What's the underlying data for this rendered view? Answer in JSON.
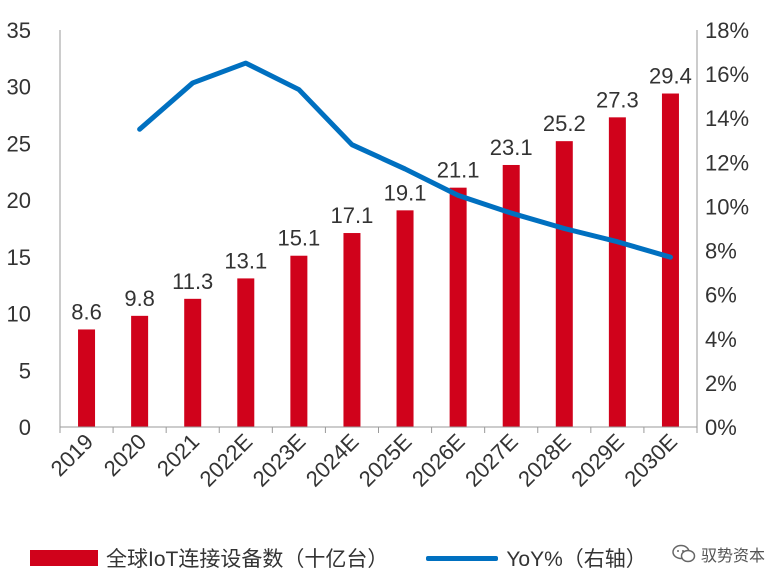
{
  "chart_data": {
    "type": "bar",
    "categories": [
      "2019",
      "2020",
      "2021",
      "2022E",
      "2023E",
      "2024E",
      "2025E",
      "2026E",
      "2027E",
      "2028E",
      "2029E",
      "2030E"
    ],
    "series": [
      {
        "name": "全球IoT连接设备数（十亿台）",
        "type": "bar",
        "axis": "left",
        "color": "#d0021b",
        "values": [
          8.6,
          9.8,
          11.3,
          13.1,
          15.1,
          17.1,
          19.1,
          21.1,
          23.1,
          25.2,
          27.3,
          29.4
        ],
        "labels": [
          "8.6",
          "9.8",
          "11.3",
          "13.1",
          "15.1",
          "17.1",
          "19.1",
          "21.1",
          "23.1",
          "25.2",
          "27.3",
          "29.4"
        ]
      },
      {
        "name": "YoY%（右轴）",
        "type": "line",
        "axis": "right",
        "color": "#0070c0",
        "values": [
          null,
          13.5,
          15.6,
          16.5,
          15.3,
          12.8,
          11.7,
          10.5,
          9.7,
          9.0,
          8.4,
          7.7
        ]
      }
    ],
    "ylim_left": [
      0,
      35
    ],
    "yticks_left": [
      "0",
      "5",
      "10",
      "15",
      "20",
      "25",
      "30",
      "35"
    ],
    "ylim_right": [
      0,
      18
    ],
    "yticks_right": [
      "0%",
      "2%",
      "4%",
      "6%",
      "8%",
      "10%",
      "12%",
      "14%",
      "16%",
      "18%"
    ],
    "grid": false,
    "legend_position": "bottom",
    "title": "",
    "xlabel": "",
    "ylabel": ""
  },
  "legend": {
    "bar_label": "全球IoT连接设备数（十亿台）",
    "line_label": "YoY%（右轴）"
  },
  "watermark": {
    "icon": "wechat-icon",
    "text": "驭势资本"
  }
}
